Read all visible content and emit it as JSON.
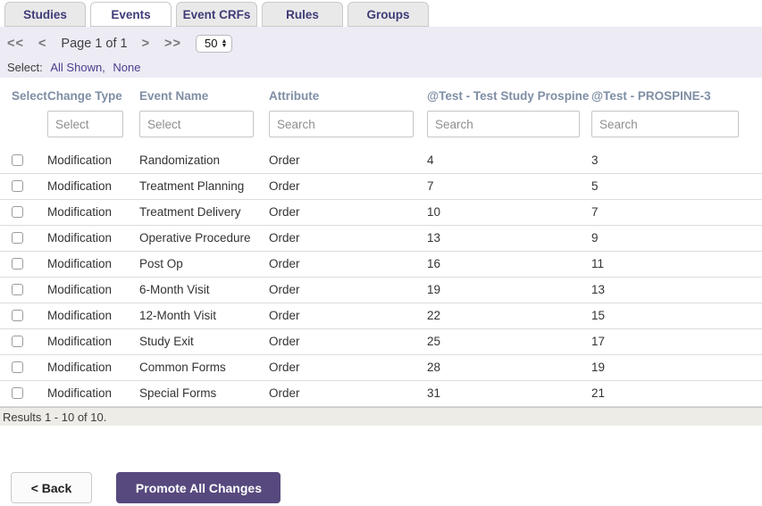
{
  "tabs": [
    {
      "label": "Studies",
      "active": false
    },
    {
      "label": "Events",
      "active": true
    },
    {
      "label": "Event CRFs",
      "active": false
    },
    {
      "label": "Rules",
      "active": false
    },
    {
      "label": "Groups",
      "active": false
    }
  ],
  "pagination": {
    "first": "<<",
    "prev": "<",
    "page_label": "Page 1 of 1",
    "next": ">",
    "last": ">>",
    "page_size": "50"
  },
  "select_bar": {
    "label": "Select:",
    "all_shown": "All Shown,",
    "none": "None"
  },
  "table": {
    "columns": [
      "Select",
      "Change Type",
      "Event Name",
      "Attribute",
      "@Test - Test Study Prospine",
      "@Test - PROSPINE-3"
    ],
    "filters": {
      "change_type_placeholder": "Select",
      "event_name_placeholder": "Select",
      "attribute_placeholder": "Search",
      "study1_placeholder": "Search",
      "study2_placeholder": "Search"
    },
    "rows": [
      {
        "change_type": "Modification",
        "event_name": "Randomization",
        "attribute": "Order",
        "study1": "4",
        "study2": "3"
      },
      {
        "change_type": "Modification",
        "event_name": "Treatment Planning",
        "attribute": "Order",
        "study1": "7",
        "study2": "5"
      },
      {
        "change_type": "Modification",
        "event_name": "Treatment Delivery",
        "attribute": "Order",
        "study1": "10",
        "study2": "7"
      },
      {
        "change_type": "Modification",
        "event_name": "Operative Procedure",
        "attribute": "Order",
        "study1": "13",
        "study2": "9"
      },
      {
        "change_type": "Modification",
        "event_name": "Post Op",
        "attribute": "Order",
        "study1": "16",
        "study2": "11"
      },
      {
        "change_type": "Modification",
        "event_name": "6-Month Visit",
        "attribute": "Order",
        "study1": "19",
        "study2": "13"
      },
      {
        "change_type": "Modification",
        "event_name": "12-Month Visit",
        "attribute": "Order",
        "study1": "22",
        "study2": "15"
      },
      {
        "change_type": "Modification",
        "event_name": "Study Exit",
        "attribute": "Order",
        "study1": "25",
        "study2": "17"
      },
      {
        "change_type": "Modification",
        "event_name": "Common Forms",
        "attribute": "Order",
        "study1": "28",
        "study2": "19"
      },
      {
        "change_type": "Modification",
        "event_name": "Special Forms",
        "attribute": "Order",
        "study1": "31",
        "study2": "21"
      }
    ],
    "results_text": "Results 1 - 10 of 10."
  },
  "footer": {
    "back_label": "< Back",
    "promote_label": "Promote All Changes"
  },
  "colors": {
    "accent_purple": "#57497e",
    "tab_text": "#3f3b78",
    "link_purple": "#4a3f8f",
    "column_header": "#7e8ea4",
    "subbar_bg": "#edebf4",
    "results_bg": "#edece7"
  }
}
